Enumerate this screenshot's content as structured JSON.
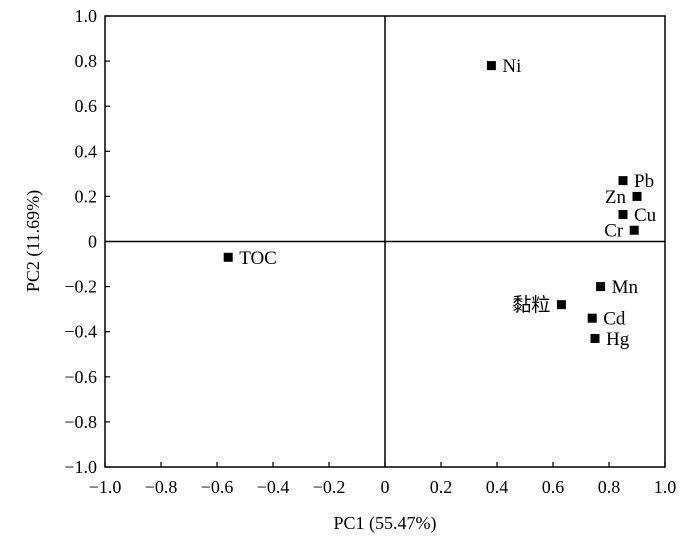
{
  "chart_data": {
    "type": "scatter",
    "title": "",
    "xlabel": "PC1 (55.47%)",
    "ylabel": "PC2 (11.69%)",
    "xlim": [
      -1.0,
      1.0
    ],
    "ylim": [
      -1.0,
      1.0
    ],
    "xticks": [
      -1.0,
      -0.8,
      -0.6,
      -0.4,
      -0.2,
      0,
      0.2,
      0.4,
      0.6,
      0.8,
      1.0
    ],
    "yticks": [
      -1.0,
      -0.8,
      -0.6,
      -0.4,
      -0.2,
      0,
      0.2,
      0.4,
      0.6,
      0.8,
      1.0
    ],
    "xtick_labels": [
      "−1.0",
      "−0.8",
      "−0.6",
      "−0.4",
      "−0.2",
      "0",
      "0.2",
      "0.4",
      "0.6",
      "0.8",
      "1.0"
    ],
    "ytick_labels": [
      "−1.0",
      "−0.8",
      "−0.6",
      "−0.4",
      "−0.2",
      "0",
      "0.2",
      "0.4",
      "0.6",
      "0.8",
      "1.0"
    ],
    "grid": false,
    "zero_lines": true,
    "marker": "square",
    "marker_color": "#000000",
    "points": [
      {
        "label": "Ni",
        "x": 0.38,
        "y": 0.78,
        "label_side": "right"
      },
      {
        "label": "Pb",
        "x": 0.85,
        "y": 0.27,
        "label_side": "right"
      },
      {
        "label": "Zn",
        "x": 0.9,
        "y": 0.2,
        "label_side": "left"
      },
      {
        "label": "Cu",
        "x": 0.85,
        "y": 0.12,
        "label_side": "right"
      },
      {
        "label": "Cr",
        "x": 0.89,
        "y": 0.05,
        "label_side": "left"
      },
      {
        "label": "TOC",
        "x": -0.56,
        "y": -0.07,
        "label_side": "right"
      },
      {
        "label": "Mn",
        "x": 0.77,
        "y": -0.2,
        "label_side": "right"
      },
      {
        "label": "黏粒",
        "x": 0.63,
        "y": -0.28,
        "label_side": "left"
      },
      {
        "label": "Cd",
        "x": 0.74,
        "y": -0.34,
        "label_side": "right"
      },
      {
        "label": "Hg",
        "x": 0.75,
        "y": -0.43,
        "label_side": "right"
      }
    ]
  }
}
